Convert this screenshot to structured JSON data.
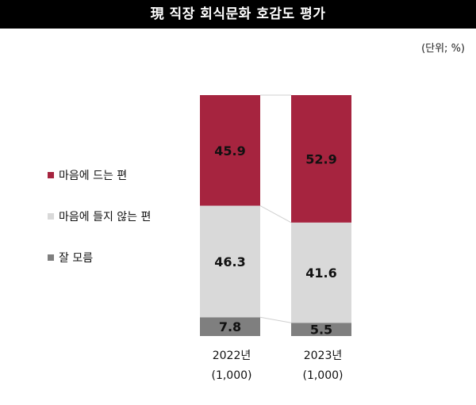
{
  "header": {
    "title": "現 직장 회식문화 호감도 평가"
  },
  "unit_label": "(단위; %)",
  "legend": [
    {
      "label": "마음에 드는 편",
      "color": "#a6243f"
    },
    {
      "label": "마음에 들지 않는 편",
      "color": "#d9d9d9"
    },
    {
      "label": "잘 모름",
      "color": "#7f7f7f"
    }
  ],
  "chart_data": {
    "type": "bar",
    "stacked": true,
    "normalized_to": 100,
    "categories": [
      "2022년",
      "2023년"
    ],
    "category_sublabels": [
      "(1,000)",
      "(1,000)"
    ],
    "series": [
      {
        "name": "잘 모름",
        "values": [
          7.8,
          5.5
        ],
        "value_labels": [
          "7.8",
          "5.5"
        ],
        "color": "#7f7f7f"
      },
      {
        "name": "마음에 들지 않는 편",
        "values": [
          46.3,
          41.6
        ],
        "value_labels": [
          "46.3",
          "41.6"
        ],
        "color": "#d9d9d9"
      },
      {
        "name": "마음에 드는 편",
        "values": [
          45.9,
          52.9
        ],
        "value_labels": [
          "45.9",
          "52.9"
        ],
        "color": "#a6243f"
      }
    ],
    "connector_lines": true
  }
}
